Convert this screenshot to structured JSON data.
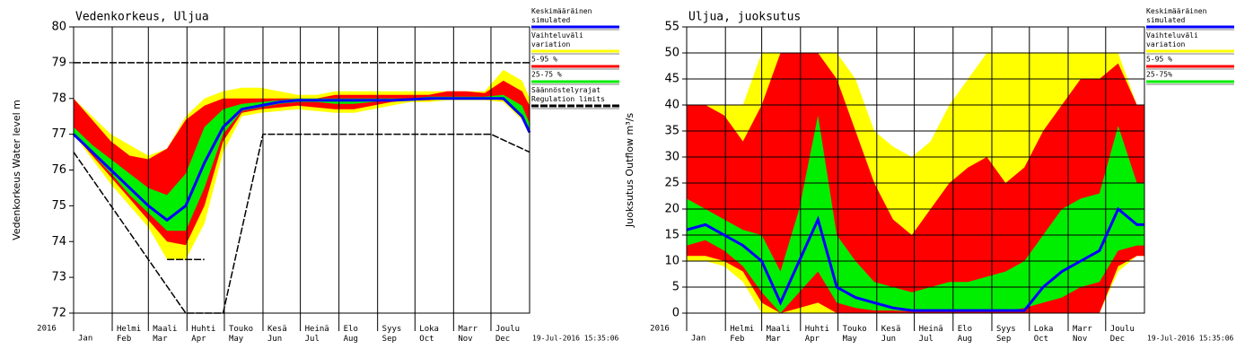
{
  "chart_data": [
    {
      "type": "band",
      "title": "Vedenkorkeus, Uljua",
      "ylabel": "Vedenkorkeus Water level m",
      "year": "2016",
      "timestamp": "19-Jul-2016 15:35:06",
      "grid": "x",
      "x": [
        0,
        15,
        30,
        45,
        60,
        75,
        90,
        105,
        120,
        135,
        150,
        165,
        180,
        195,
        210,
        225,
        240,
        255,
        270,
        285,
        300,
        315,
        330,
        345,
        360,
        366
      ],
      "xlim": [
        0,
        366
      ],
      "xticks": [
        {
          "value": 0,
          "label": "Jan"
        },
        {
          "value": 31,
          "label": "Helmi\nFeb"
        },
        {
          "value": 60,
          "label": "Maali\nMar"
        },
        {
          "value": 91,
          "label": "Huhti\nApr"
        },
        {
          "value": 121,
          "label": "Touko\nMay"
        },
        {
          "value": 152,
          "label": "Kesä\nJun"
        },
        {
          "value": 182,
          "label": "Heinä\nJul"
        },
        {
          "value": 213,
          "label": "Elo\nAug"
        },
        {
          "value": 244,
          "label": "Syys\nSep"
        },
        {
          "value": 274,
          "label": "Loka\nOct"
        },
        {
          "value": 305,
          "label": "Marr\nNov"
        },
        {
          "value": 335,
          "label": "Joulu\nDec"
        }
      ],
      "ylim": [
        72,
        80
      ],
      "yticks": [
        72,
        73,
        74,
        75,
        76,
        77,
        78,
        79,
        80
      ],
      "series": [
        {
          "name": "Keskimääräinen\nsimulated",
          "color": "#0000ff",
          "values": [
            77.0,
            76.5,
            76.0,
            75.5,
            75.0,
            74.6,
            75.0,
            76.2,
            77.2,
            77.7,
            77.8,
            77.9,
            77.95,
            77.95,
            77.95,
            77.95,
            77.95,
            77.95,
            77.97,
            78.0,
            78.0,
            78.0,
            78.0,
            78.0,
            77.5,
            77.05
          ]
        },
        {
          "name": "Vaihteluväli\nvariation",
          "color": "#ffff00",
          "low": [
            77.0,
            76.3,
            75.6,
            75.0,
            74.4,
            73.5,
            73.5,
            74.5,
            76.5,
            77.5,
            77.6,
            77.65,
            77.7,
            77.65,
            77.6,
            77.6,
            77.7,
            77.8,
            77.9,
            77.9,
            77.95,
            77.95,
            77.95,
            77.9,
            77.4,
            77.0
          ],
          "high": [
            78.0,
            77.5,
            77.0,
            76.7,
            76.4,
            76.6,
            77.5,
            78.0,
            78.2,
            78.3,
            78.3,
            78.2,
            78.1,
            78.1,
            78.2,
            78.2,
            78.2,
            78.2,
            78.2,
            78.2,
            78.2,
            78.2,
            78.2,
            78.8,
            78.5,
            78.0
          ]
        },
        {
          "name": "5-95 %",
          "color": "#ff0000",
          "low": [
            77.0,
            76.4,
            75.8,
            75.2,
            74.6,
            74.0,
            73.9,
            75.0,
            76.8,
            77.6,
            77.7,
            77.75,
            77.8,
            77.75,
            77.7,
            77.7,
            77.8,
            77.9,
            77.95,
            77.95,
            78.0,
            78.0,
            78.0,
            77.95,
            77.45,
            77.0
          ],
          "high": [
            78.0,
            77.4,
            76.8,
            76.4,
            76.3,
            76.6,
            77.4,
            77.8,
            78.0,
            78.0,
            78.0,
            78.0,
            78.0,
            78.0,
            78.1,
            78.1,
            78.1,
            78.1,
            78.1,
            78.1,
            78.2,
            78.2,
            78.15,
            78.5,
            78.2,
            77.8
          ]
        },
        {
          "name": "25-75 %",
          "color": "#00ee00",
          "low": [
            77.0,
            76.45,
            75.9,
            75.3,
            74.8,
            74.3,
            74.3,
            75.5,
            77.0,
            77.65,
            77.75,
            77.85,
            77.9,
            77.9,
            77.85,
            77.85,
            77.9,
            77.95,
            77.95,
            78.0,
            78.0,
            78.0,
            78.0,
            78.0,
            77.5,
            77.0
          ],
          "high": [
            77.2,
            76.7,
            76.3,
            75.9,
            75.5,
            75.3,
            75.9,
            77.2,
            77.7,
            77.85,
            77.9,
            77.95,
            78.0,
            78.0,
            78.0,
            78.0,
            78.0,
            78.0,
            78.0,
            78.05,
            78.05,
            78.05,
            78.05,
            78.1,
            77.8,
            77.3
          ]
        },
        {
          "name": "Säännöstelyrajat\nRegulation limits",
          "color": "#000000",
          "dashed": true,
          "lines": [
            {
              "x": [
                0,
                366
              ],
              "values": [
                79,
                79
              ]
            },
            {
              "x": [
                0,
                90,
                120,
                152,
                335,
                366
              ],
              "values": [
                76.5,
                72,
                72,
                77,
                77,
                76.5
              ]
            },
            {
              "x": [
                75,
                105
              ],
              "values": [
                73.5,
                73.5
              ]
            }
          ]
        }
      ]
    },
    {
      "type": "band",
      "title": "Uljua, juoksutus",
      "ylabel": "Juoksutus Outflow m³/s",
      "year": "2016",
      "timestamp": "19-Jul-2016 15:35:06",
      "grid": "both",
      "x": [
        0,
        15,
        30,
        45,
        60,
        75,
        90,
        105,
        120,
        135,
        150,
        165,
        180,
        195,
        210,
        225,
        240,
        255,
        270,
        285,
        300,
        315,
        330,
        345,
        360,
        366
      ],
      "xlim": [
        0,
        366
      ],
      "xticks": [
        {
          "value": 0,
          "label": "Jan"
        },
        {
          "value": 31,
          "label": "Helmi\nFeb"
        },
        {
          "value": 60,
          "label": "Maali\nMar"
        },
        {
          "value": 91,
          "label": "Huhti\nApr"
        },
        {
          "value": 121,
          "label": "Touko\nMay"
        },
        {
          "value": 152,
          "label": "Kesä\nJun"
        },
        {
          "value": 182,
          "label": "Heinä\nJul"
        },
        {
          "value": 213,
          "label": "Elo\nAug"
        },
        {
          "value": 244,
          "label": "Syys\nSep"
        },
        {
          "value": 274,
          "label": "Loka\nOct"
        },
        {
          "value": 305,
          "label": "Marr\nNov"
        },
        {
          "value": 335,
          "label": "Joulu\nDec"
        }
      ],
      "ylim": [
        0,
        55
      ],
      "yticks": [
        0,
        5,
        10,
        15,
        20,
        25,
        30,
        35,
        40,
        45,
        50,
        55
      ],
      "series": [
        {
          "name": "Keskimääräinen\nsimulated",
          "color": "#0000ff",
          "values": [
            16,
            17,
            15,
            13,
            10,
            2,
            10,
            18,
            5,
            3,
            2,
            1,
            0.5,
            0.5,
            0.5,
            0.5,
            0.5,
            0.5,
            0.5,
            5,
            8,
            10,
            12,
            20,
            17,
            17
          ]
        },
        {
          "name": "Vaihteluväli\nvariation",
          "color": "#ffff00",
          "low": [
            10,
            10,
            9,
            6,
            0,
            0,
            0,
            0,
            0,
            0,
            0,
            0,
            0,
            0,
            0,
            0,
            0,
            0,
            0,
            0,
            0,
            0,
            0,
            8,
            11,
            11
          ],
          "high": [
            40,
            40,
            40,
            40,
            50,
            50,
            50,
            50,
            50,
            45,
            35,
            32,
            30,
            33,
            40,
            45,
            50,
            50,
            50,
            50,
            50,
            50,
            50,
            50,
            40,
            40
          ]
        },
        {
          "name": "5-95 %",
          "color": "#ff0000",
          "low": [
            11,
            11,
            10,
            8,
            2,
            0,
            1,
            2,
            0,
            0,
            0,
            0,
            0,
            0,
            0,
            0,
            0,
            0,
            0,
            0,
            0,
            0,
            0,
            9,
            11,
            11
          ],
          "high": [
            40,
            40,
            38,
            33,
            40,
            50,
            50,
            50,
            45,
            35,
            25,
            18,
            15,
            20,
            25,
            28,
            30,
            25,
            28,
            35,
            40,
            45,
            45,
            48,
            40,
            40
          ]
        },
        {
          "name": "25-75%",
          "color": "#00ee00",
          "low": [
            13,
            14,
            12,
            9,
            4,
            0,
            4,
            8,
            2,
            1,
            0.5,
            0.5,
            0.3,
            0.3,
            0.3,
            0.3,
            0.3,
            0.3,
            1,
            2,
            3,
            5,
            6,
            12,
            13,
            13
          ],
          "high": [
            22,
            20,
            18,
            16,
            15,
            8,
            20,
            38,
            15,
            10,
            6,
            5,
            4,
            5,
            6,
            6,
            7,
            8,
            10,
            15,
            20,
            22,
            23,
            36,
            25,
            25
          ]
        }
      ]
    }
  ]
}
